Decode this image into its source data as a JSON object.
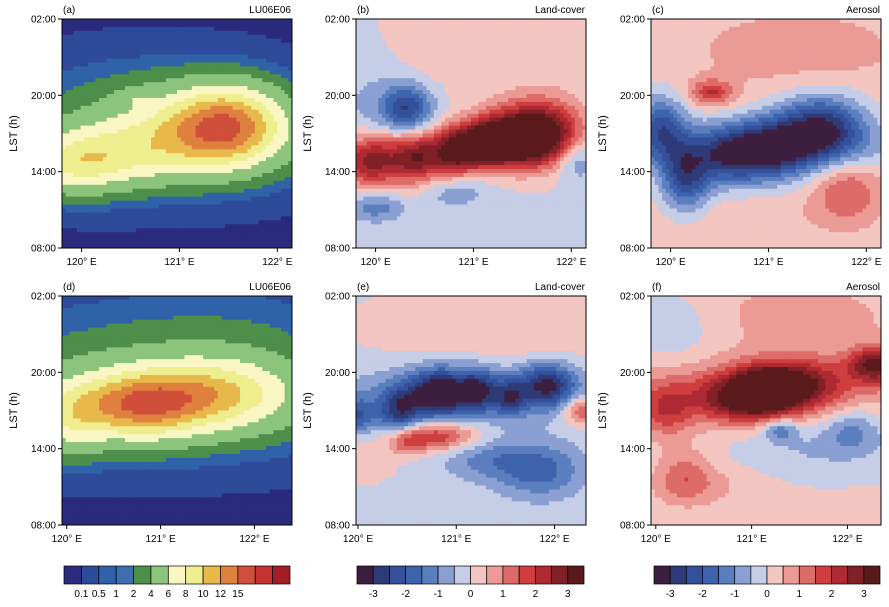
{
  "palettes": {
    "seq": [
      "#2b2a7d",
      "#2e4a9a",
      "#2f62a8",
      "#3c6eb0",
      "#4d8f4a",
      "#8cc47c",
      "#f9f6c4",
      "#efee8f",
      "#e9b84a",
      "#e0803f",
      "#cf4f3a",
      "#c4312e",
      "#a31d26"
    ],
    "div": [
      "#3d1e3e",
      "#2f3b78",
      "#34509b",
      "#3e63ad",
      "#5b7ebe",
      "#8a9fd2",
      "#c6cde6",
      "#f3c6c1",
      "#eb9a96",
      "#dd6b68",
      "#cf3e3e",
      "#ad2a32",
      "#822027",
      "#5a1a1c"
    ]
  },
  "colorbars": [
    {
      "kind": "seq",
      "tick_labels": [
        "0.1",
        "0.5",
        "1",
        "2",
        "4",
        "6",
        "8",
        "10",
        "12",
        "15"
      ],
      "tick_positions": [
        1,
        2,
        3,
        4,
        5,
        6,
        7,
        8,
        9,
        10
      ]
    },
    {
      "kind": "div",
      "tick_labels": [
        "-3",
        "-2",
        "-1",
        "0",
        "1",
        "2",
        "3"
      ],
      "tick_positions": [
        1,
        3,
        5,
        7,
        9,
        11,
        13
      ]
    },
    {
      "kind": "div",
      "tick_labels": [
        "-3",
        "-2",
        "-1",
        "0",
        "1",
        "2",
        "3"
      ],
      "tick_positions": [
        1,
        3,
        5,
        7,
        9,
        11,
        13
      ]
    }
  ],
  "chart_data": [
    {
      "panel": "(a)",
      "title": "LU06E06",
      "type": "heatmap",
      "kind": "seq",
      "ylabel": "LST (h)",
      "yticks": [
        "02:00",
        "20:00",
        "14:00",
        "08:00"
      ],
      "xticks": [
        "120° E",
        "121° E",
        "122° E"
      ],
      "xlim": [
        119.8,
        122.15
      ],
      "ylim": [
        8,
        26
      ],
      "features": [
        {
          "x": 121.5,
          "y": 17.6,
          "sx": 0.4,
          "sy": 2.1,
          "a": 9.5
        },
        {
          "x": 121.05,
          "y": 16.9,
          "sx": 0.55,
          "sy": 2.0,
          "a": 3.5
        },
        {
          "x": 120.25,
          "y": 15.2,
          "sx": 0.5,
          "sy": 1.7,
          "a": 4.5
        },
        {
          "x": 119.9,
          "y": 14.4,
          "sx": 0.3,
          "sy": 1.5,
          "a": 3.0
        },
        {
          "x": 120.7,
          "y": 16.5,
          "sx": 1.0,
          "sy": 2.6,
          "a": 1.5
        },
        {
          "x": 120.65,
          "y": 20.0,
          "sx": 0.7,
          "sy": 2.2,
          "a": 0.9
        },
        {
          "x": 120.55,
          "y": 19.8,
          "sx": 0.12,
          "sy": 0.5,
          "a": 1.2
        }
      ],
      "base": 0.05
    },
    {
      "panel": "(b)",
      "title": "Land-cover",
      "type": "heatmap",
      "kind": "div",
      "ylabel": "LST (h)",
      "yticks": [
        "02:00",
        "20:00",
        "14:00",
        "08:00"
      ],
      "xticks": [
        "120° E",
        "121° E",
        "122° E"
      ],
      "xlim": [
        119.8,
        122.15
      ],
      "ylim": [
        8,
        26
      ],
      "features": [
        {
          "x": 121.7,
          "y": 17.1,
          "sx": 0.28,
          "sy": 1.7,
          "a": 3.6
        },
        {
          "x": 121.35,
          "y": 16.6,
          "sx": 0.22,
          "sy": 1.5,
          "a": 2.5
        },
        {
          "x": 121.1,
          "y": 16.3,
          "sx": 0.15,
          "sy": 1.3,
          "a": 2.4
        },
        {
          "x": 120.82,
          "y": 15.6,
          "sx": 0.15,
          "sy": 1.4,
          "a": 2.6
        },
        {
          "x": 120.42,
          "y": 14.8,
          "sx": 0.18,
          "sy": 1.4,
          "a": 2.3
        },
        {
          "x": 119.95,
          "y": 14.6,
          "sx": 0.2,
          "sy": 1.4,
          "a": 2.5
        },
        {
          "x": 120.9,
          "y": 15.8,
          "sx": 1.2,
          "sy": 1.2,
          "a": 1.0
        },
        {
          "x": 120.32,
          "y": 19.0,
          "sx": 0.18,
          "sy": 1.3,
          "a": -2.4
        },
        {
          "x": 120.0,
          "y": 11.2,
          "sx": 0.2,
          "sy": 0.8,
          "a": -1.2
        },
        {
          "x": 122.05,
          "y": 15.2,
          "sx": 0.15,
          "sy": 1.2,
          "a": -1.6
        },
        {
          "x": 120.8,
          "y": 12.5,
          "sx": 0.25,
          "sy": 1.0,
          "a": -0.8
        },
        {
          "x": 121.2,
          "y": 24.0,
          "sx": 1.2,
          "sy": 3.0,
          "a": 0.5
        },
        {
          "x": 119.9,
          "y": 20.0,
          "sx": 0.3,
          "sy": 4.0,
          "a": -0.5
        }
      ],
      "base": -0.1
    },
    {
      "panel": "(c)",
      "title": "Aerosol",
      "type": "heatmap",
      "kind": "div",
      "ylabel": "LST (h)",
      "yticks": [
        "02:00",
        "20:00",
        "14:00",
        "08:00"
      ],
      "xticks": [
        "120° E",
        "121° E",
        "122° E"
      ],
      "xlim": [
        119.8,
        122.15
      ],
      "ylim": [
        8,
        26
      ],
      "features": [
        {
          "x": 121.55,
          "y": 17.4,
          "sx": 0.3,
          "sy": 1.8,
          "a": -3.1
        },
        {
          "x": 121.05,
          "y": 15.8,
          "sx": 0.28,
          "sy": 1.7,
          "a": -2.7
        },
        {
          "x": 120.6,
          "y": 15.2,
          "sx": 0.25,
          "sy": 1.6,
          "a": -2.3
        },
        {
          "x": 120.15,
          "y": 13.6,
          "sx": 0.18,
          "sy": 1.9,
          "a": -2.6
        },
        {
          "x": 119.9,
          "y": 17.5,
          "sx": 0.18,
          "sy": 1.7,
          "a": -2.2
        },
        {
          "x": 121.0,
          "y": 16.0,
          "sx": 1.2,
          "sy": 1.3,
          "a": -0.8
        },
        {
          "x": 120.42,
          "y": 20.2,
          "sx": 0.15,
          "sy": 0.7,
          "a": 1.8
        },
        {
          "x": 121.8,
          "y": 12.5,
          "sx": 0.25,
          "sy": 1.8,
          "a": 1.3
        },
        {
          "x": 121.3,
          "y": 23.5,
          "sx": 1.0,
          "sy": 3.0,
          "a": 0.6
        },
        {
          "x": 120.6,
          "y": 10.5,
          "sx": 1.2,
          "sy": 2.0,
          "a": 0.3
        }
      ],
      "base": 0.1
    },
    {
      "panel": "(d)",
      "title": "LU06E06",
      "type": "heatmap",
      "kind": "seq",
      "ylabel": "LST (h)",
      "yticks": [
        "02:00",
        "20:00",
        "14:00",
        "08:00"
      ],
      "xticks": [
        "120° E",
        "121° E",
        "122° E"
      ],
      "xlim": [
        119.95,
        122.4
      ],
      "ylim": [
        8,
        26
      ],
      "features": [
        {
          "x": 120.75,
          "y": 17.4,
          "sx": 0.45,
          "sy": 1.7,
          "a": 8.5
        },
        {
          "x": 121.55,
          "y": 18.3,
          "sx": 0.55,
          "sy": 1.8,
          "a": 6.0
        },
        {
          "x": 120.05,
          "y": 16.3,
          "sx": 0.25,
          "sy": 1.9,
          "a": 3.5
        },
        {
          "x": 121.0,
          "y": 17.5,
          "sx": 1.2,
          "sy": 2.6,
          "a": 2.2
        },
        {
          "x": 120.5,
          "y": 20.5,
          "sx": 1.3,
          "sy": 3.0,
          "a": 0.8
        },
        {
          "x": 121.8,
          "y": 20.8,
          "sx": 0.8,
          "sy": 3.4,
          "a": 0.6
        },
        {
          "x": 121.2,
          "y": 23.5,
          "sx": 1.4,
          "sy": 3.0,
          "a": 0.3
        }
      ],
      "base": 0.05
    },
    {
      "panel": "(e)",
      "title": "Land-cover",
      "type": "heatmap",
      "kind": "div",
      "ylabel": "LST (h)",
      "yticks": [
        "02:00",
        "20:00",
        "14:00",
        "08:00"
      ],
      "xticks": [
        "120° E",
        "121° E",
        "122° E"
      ],
      "xlim": [
        119.98,
        122.32
      ],
      "ylim": [
        8,
        26
      ],
      "features": [
        {
          "x": 120.82,
          "y": 18.4,
          "sx": 0.2,
          "sy": 1.3,
          "a": -3.0
        },
        {
          "x": 120.42,
          "y": 17.0,
          "sx": 0.15,
          "sy": 1.3,
          "a": -2.2
        },
        {
          "x": 121.22,
          "y": 18.6,
          "sx": 0.15,
          "sy": 1.2,
          "a": -2.2
        },
        {
          "x": 121.55,
          "y": 18.0,
          "sx": 0.1,
          "sy": 1.0,
          "a": -1.8
        },
        {
          "x": 121.92,
          "y": 19.0,
          "sx": 0.2,
          "sy": 1.2,
          "a": -2.6
        },
        {
          "x": 120.0,
          "y": 16.6,
          "sx": 0.12,
          "sy": 1.0,
          "a": -1.6
        },
        {
          "x": 121.1,
          "y": 18.3,
          "sx": 1.0,
          "sy": 1.6,
          "a": -1.0
        },
        {
          "x": 121.85,
          "y": 12.3,
          "sx": 0.3,
          "sy": 1.5,
          "a": -1.6
        },
        {
          "x": 121.3,
          "y": 13.2,
          "sx": 0.3,
          "sy": 1.2,
          "a": -1.0
        },
        {
          "x": 120.8,
          "y": 15.0,
          "sx": 0.3,
          "sy": 0.8,
          "a": 2.2
        },
        {
          "x": 120.5,
          "y": 14.4,
          "sx": 0.12,
          "sy": 0.7,
          "a": 1.2
        },
        {
          "x": 122.3,
          "y": 17.0,
          "sx": 0.15,
          "sy": 0.8,
          "a": 2.0
        },
        {
          "x": 121.5,
          "y": 23.5,
          "sx": 1.0,
          "sy": 2.5,
          "a": 0.6
        },
        {
          "x": 120.1,
          "y": 13.0,
          "sx": 0.2,
          "sy": 1.2,
          "a": 0.5
        }
      ],
      "base": -0.15
    },
    {
      "panel": "(f)",
      "title": "Aerosol",
      "type": "heatmap",
      "kind": "div",
      "ylabel": "LST (h)",
      "yticks": [
        "02:00",
        "20:00",
        "14:00",
        "08:00"
      ],
      "xticks": [
        "120° E",
        "121° E",
        "122° E"
      ],
      "xlim": [
        119.95,
        122.35
      ],
      "ylim": [
        8,
        26
      ],
      "features": [
        {
          "x": 121.15,
          "y": 18.5,
          "sx": 0.25,
          "sy": 1.3,
          "a": 3.8
        },
        {
          "x": 120.75,
          "y": 17.8,
          "sx": 0.3,
          "sy": 1.4,
          "a": 1.8
        },
        {
          "x": 121.55,
          "y": 19.1,
          "sx": 0.3,
          "sy": 1.4,
          "a": 1.8
        },
        {
          "x": 122.3,
          "y": 20.6,
          "sx": 0.2,
          "sy": 1.0,
          "a": 2.8
        },
        {
          "x": 120.1,
          "y": 17.0,
          "sx": 0.2,
          "sy": 1.5,
          "a": 1.6
        },
        {
          "x": 121.2,
          "y": 18.8,
          "sx": 1.2,
          "sy": 1.7,
          "a": 1.0
        },
        {
          "x": 120.3,
          "y": 12.0,
          "sx": 0.2,
          "sy": 1.5,
          "a": 1.0
        },
        {
          "x": 120.45,
          "y": 11.0,
          "sx": 0.4,
          "sy": 1.2,
          "a": 0.6
        },
        {
          "x": 121.3,
          "y": 15.5,
          "sx": 0.12,
          "sy": 0.6,
          "a": -1.5
        },
        {
          "x": 122.05,
          "y": 15.5,
          "sx": 0.2,
          "sy": 1.2,
          "a": -1.0
        },
        {
          "x": 121.7,
          "y": 14.0,
          "sx": 0.6,
          "sy": 1.4,
          "a": -0.6
        },
        {
          "x": 121.5,
          "y": 24.5,
          "sx": 1.0,
          "sy": 2.5,
          "a": 0.6
        },
        {
          "x": 120.2,
          "y": 23.5,
          "sx": 0.3,
          "sy": 2.0,
          "a": -0.6
        }
      ],
      "base": 0.05
    }
  ]
}
